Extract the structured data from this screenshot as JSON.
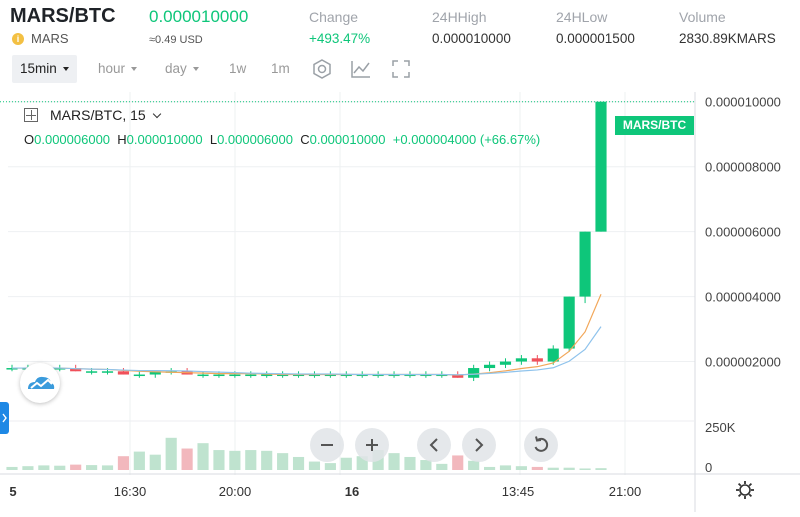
{
  "header": {
    "pair": "MARS/BTC",
    "last_price": "0.000010000",
    "coin_icon_text": "i",
    "coin_name": "MARS",
    "usd_price": "≈0.49 USD",
    "stats": [
      {
        "label": "Change",
        "value": "+493.47%",
        "positive": true
      },
      {
        "label": "24HHigh",
        "value": "0.000010000",
        "positive": false
      },
      {
        "label": "24HLow",
        "value": "0.000001500",
        "positive": false
      },
      {
        "label": "Volume",
        "value": "2830.89KMARS",
        "positive": false
      }
    ]
  },
  "toolbar": {
    "intervals": [
      "15min",
      "hour",
      "day",
      "1w",
      "1m"
    ],
    "active_interval": "15min",
    "icons": [
      "settings-hexagon-icon",
      "indicators-icon",
      "fullscreen-icon"
    ]
  },
  "legend": {
    "title": "MARS/BTC, 15",
    "ohlc": {
      "o_label": "O",
      "o": "0.000006000",
      "h_label": "H",
      "h": "0.000010000",
      "l_label": "L",
      "l": "0.000006000",
      "c_label": "C",
      "c": "0.000010000",
      "change": "+0.000004000 (+66.67%)"
    }
  },
  "price_tag": "MARS/BTC",
  "colors": {
    "up": "#0ec67a",
    "down": "#f0505a",
    "vol_up": "#bfe3cf",
    "vol_down": "#f2b8bd",
    "ma1": "#f2a75a",
    "ma2": "#8fc3ec"
  },
  "controls": [
    "zoom-out",
    "zoom-in",
    "scroll-left",
    "scroll-right",
    "reset"
  ],
  "chart_data": {
    "type": "candlestick",
    "y_ticks": [
      "0.000010000",
      "0.000008000",
      "0.000006000",
      "0.000004000",
      "0.000002000"
    ],
    "y_tick_values": [
      1e-05,
      8e-06,
      6e-06,
      4e-06,
      2e-06
    ],
    "ylim": [
      2e-07,
      1.03e-05
    ],
    "x_ticks": [
      "5",
      "16:30",
      "20:00",
      "16",
      "13:45",
      "21:00"
    ],
    "x_ticks_bold": [
      true,
      false,
      false,
      true,
      false,
      false
    ],
    "volume_ticks": [
      "250K",
      "0"
    ],
    "volume_ylim": [
      0,
      300000
    ],
    "last_price": 1e-05,
    "candles": [
      {
        "o": 1.8e-06,
        "h": 1.9e-06,
        "l": 1.7e-06,
        "c": 1.8e-06,
        "v": 20000
      },
      {
        "o": 1.8e-06,
        "h": 1.9e-06,
        "l": 1.7e-06,
        "c": 1.8e-06,
        "v": 25000
      },
      {
        "o": 1.8e-06,
        "h": 1.9e-06,
        "l": 1.7e-06,
        "c": 1.8e-06,
        "v": 30000
      },
      {
        "o": 1.8e-06,
        "h": 1.9e-06,
        "l": 1.7e-06,
        "c": 1.8e-06,
        "v": 28000
      },
      {
        "o": 1.8e-06,
        "h": 1.9e-06,
        "l": 1.7e-06,
        "c": 1.7e-06,
        "v": 35000
      },
      {
        "o": 1.7e-06,
        "h": 1.8e-06,
        "l": 1.6e-06,
        "c": 1.7e-06,
        "v": 32000
      },
      {
        "o": 1.7e-06,
        "h": 1.8e-06,
        "l": 1.6e-06,
        "c": 1.7e-06,
        "v": 30000
      },
      {
        "o": 1.7e-06,
        "h": 1.8e-06,
        "l": 1.6e-06,
        "c": 1.6e-06,
        "v": 90000
      },
      {
        "o": 1.6e-06,
        "h": 1.7e-06,
        "l": 1.5e-06,
        "c": 1.6e-06,
        "v": 120000
      },
      {
        "o": 1.6e-06,
        "h": 1.7e-06,
        "l": 1.5e-06,
        "c": 1.7e-06,
        "v": 100000
      },
      {
        "o": 1.7e-06,
        "h": 1.8e-06,
        "l": 1.6e-06,
        "c": 1.7e-06,
        "v": 210000
      },
      {
        "o": 1.7e-06,
        "h": 1.8e-06,
        "l": 1.6e-06,
        "c": 1.6e-06,
        "v": 140000
      },
      {
        "o": 1.6e-06,
        "h": 1.7e-06,
        "l": 1.5e-06,
        "c": 1.6e-06,
        "v": 175000
      },
      {
        "o": 1.6e-06,
        "h": 1.7e-06,
        "l": 1.5e-06,
        "c": 1.6e-06,
        "v": 130000
      },
      {
        "o": 1.6e-06,
        "h": 1.7e-06,
        "l": 1.5e-06,
        "c": 1.6e-06,
        "v": 125000
      },
      {
        "o": 1.6e-06,
        "h": 1.7e-06,
        "l": 1.5e-06,
        "c": 1.6e-06,
        "v": 130000
      },
      {
        "o": 1.6e-06,
        "h": 1.7e-06,
        "l": 1.5e-06,
        "c": 1.6e-06,
        "v": 125000
      },
      {
        "o": 1.6e-06,
        "h": 1.7e-06,
        "l": 1.5e-06,
        "c": 1.6e-06,
        "v": 110000
      },
      {
        "o": 1.6e-06,
        "h": 1.7e-06,
        "l": 1.5e-06,
        "c": 1.6e-06,
        "v": 85000
      },
      {
        "o": 1.6e-06,
        "h": 1.7e-06,
        "l": 1.5e-06,
        "c": 1.6e-06,
        "v": 55000
      },
      {
        "o": 1.6e-06,
        "h": 1.7e-06,
        "l": 1.5e-06,
        "c": 1.6e-06,
        "v": 45000
      },
      {
        "o": 1.6e-06,
        "h": 1.7e-06,
        "l": 1.5e-06,
        "c": 1.6e-06,
        "v": 80000
      },
      {
        "o": 1.6e-06,
        "h": 1.7e-06,
        "l": 1.5e-06,
        "c": 1.6e-06,
        "v": 90000
      },
      {
        "o": 1.6e-06,
        "h": 1.7e-06,
        "l": 1.5e-06,
        "c": 1.6e-06,
        "v": 130000
      },
      {
        "o": 1.6e-06,
        "h": 1.7e-06,
        "l": 1.5e-06,
        "c": 1.6e-06,
        "v": 110000
      },
      {
        "o": 1.6e-06,
        "h": 1.7e-06,
        "l": 1.5e-06,
        "c": 1.6e-06,
        "v": 85000
      },
      {
        "o": 1.6e-06,
        "h": 1.7e-06,
        "l": 1.5e-06,
        "c": 1.6e-06,
        "v": 65000
      },
      {
        "o": 1.6e-06,
        "h": 1.7e-06,
        "l": 1.5e-06,
        "c": 1.6e-06,
        "v": 40000
      },
      {
        "o": 1.6e-06,
        "h": 1.7e-06,
        "l": 1.5e-06,
        "c": 1.5e-06,
        "v": 95000
      },
      {
        "o": 1.5e-06,
        "h": 1.9e-06,
        "l": 1.4e-06,
        "c": 1.8e-06,
        "v": 60000
      },
      {
        "o": 1.8e-06,
        "h": 2e-06,
        "l": 1.7e-06,
        "c": 1.9e-06,
        "v": 20000
      },
      {
        "o": 1.9e-06,
        "h": 2.1e-06,
        "l": 1.8e-06,
        "c": 2e-06,
        "v": 30000
      },
      {
        "o": 2e-06,
        "h": 2.2e-06,
        "l": 1.9e-06,
        "c": 2.1e-06,
        "v": 25000
      },
      {
        "o": 2.1e-06,
        "h": 2.2e-06,
        "l": 1.9e-06,
        "c": 2e-06,
        "v": 20000
      },
      {
        "o": 2e-06,
        "h": 2.5e-06,
        "l": 1.9e-06,
        "c": 2.4e-06,
        "v": 15000
      },
      {
        "o": 2.4e-06,
        "h": 4e-06,
        "l": 2.3e-06,
        "c": 4e-06,
        "v": 15000
      },
      {
        "o": 4e-06,
        "h": 6e-06,
        "l": 3.8e-06,
        "c": 6e-06,
        "v": 10000
      },
      {
        "o": 6e-06,
        "h": 1e-05,
        "l": 6e-06,
        "c": 1e-05,
        "v": 12000
      }
    ]
  }
}
